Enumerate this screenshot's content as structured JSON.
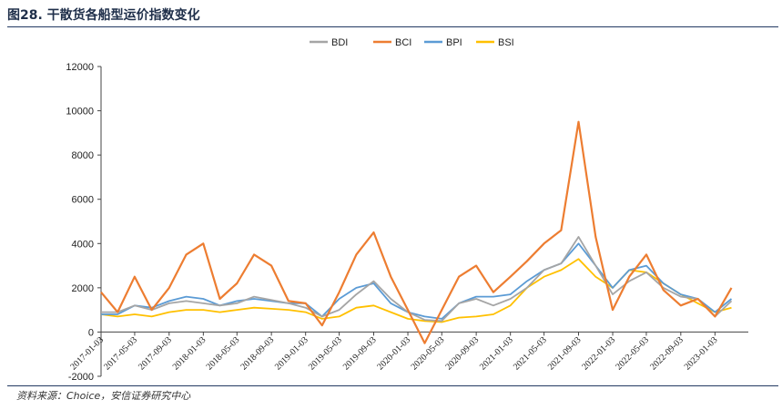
{
  "figure": {
    "title": "图28. 干散货各船型运价指数变化",
    "source": "资料来源：Choice，安信证券研究中心"
  },
  "colors": {
    "BDI": "#a5a5a5",
    "BCI": "#ed7d31",
    "BPI": "#5b9bd5",
    "BSI": "#ffc000"
  },
  "chart_data": {
    "type": "line",
    "ylim": [
      -2000,
      12000
    ],
    "yticks": [
      -2000,
      0,
      2000,
      4000,
      6000,
      8000,
      10000,
      12000
    ],
    "legend_position": "top-center",
    "grid": false,
    "x": [
      "2017-01-03",
      "2017-03-03",
      "2017-05-03",
      "2017-07-03",
      "2017-09-03",
      "2017-11-03",
      "2018-01-03",
      "2018-03-03",
      "2018-05-03",
      "2018-07-03",
      "2018-09-03",
      "2018-11-03",
      "2019-01-03",
      "2019-03-03",
      "2019-05-03",
      "2019-07-03",
      "2019-09-03",
      "2019-11-03",
      "2020-01-03",
      "2020-03-03",
      "2020-05-03",
      "2020-07-03",
      "2020-09-03",
      "2020-11-03",
      "2021-01-03",
      "2021-03-03",
      "2021-05-03",
      "2021-07-03",
      "2021-09-03",
      "2021-11-03",
      "2022-01-03",
      "2022-03-03",
      "2022-05-03",
      "2022-07-03",
      "2022-09-03",
      "2022-11-03",
      "2023-01-03",
      "2023-03-03"
    ],
    "xtick_labels": [
      "2017-01-03",
      "2017-05-03",
      "2017-09-03",
      "2018-01-03",
      "2018-05-03",
      "2018-09-03",
      "2019-01-03",
      "2019-05-03",
      "2019-09-03",
      "2020-01-03",
      "2020-05-03",
      "2020-09-03",
      "2021-01-03",
      "2021-05-03",
      "2021-09-03",
      "2022-01-03",
      "2022-05-03",
      "2022-09-03",
      "2023-01-03"
    ],
    "series": [
      {
        "name": "BDI",
        "values": [
          900,
          900,
          1200,
          1000,
          1300,
          1400,
          1300,
          1200,
          1300,
          1600,
          1450,
          1300,
          1100,
          700,
          1000,
          1700,
          2300,
          1500,
          900,
          550,
          500,
          1300,
          1500,
          1200,
          1500,
          2000,
          2800,
          3100,
          4300,
          3000,
          1700,
          2300,
          2700,
          2000,
          1600,
          1500,
          700,
          1400
        ]
      },
      {
        "name": "BCI",
        "values": [
          1800,
          900,
          2500,
          1000,
          2000,
          3500,
          4000,
          1500,
          2200,
          3500,
          3000,
          1400,
          1300,
          300,
          1800,
          3500,
          4500,
          2500,
          1000,
          -500,
          1000,
          2500,
          3000,
          1800,
          2500,
          3200,
          4000,
          4600,
          9500,
          4300,
          1000,
          2500,
          3500,
          1900,
          1200,
          1500,
          700,
          2000
        ]
      },
      {
        "name": "BPI",
        "values": [
          800,
          800,
          1200,
          1100,
          1400,
          1600,
          1500,
          1200,
          1400,
          1500,
          1400,
          1300,
          1300,
          700,
          1500,
          2000,
          2200,
          1300,
          900,
          700,
          600,
          1300,
          1600,
          1600,
          1700,
          2300,
          2800,
          3100,
          4000,
          3000,
          2000,
          2800,
          3000,
          2200,
          1700,
          1500,
          900,
          1500
        ]
      },
      {
        "name": "BSI",
        "values": [
          800,
          700,
          800,
          700,
          900,
          1000,
          1000,
          900,
          1000,
          1100,
          1050,
          1000,
          900,
          600,
          700,
          1100,
          1200,
          900,
          600,
          500,
          450,
          650,
          700,
          800,
          1200,
          2000,
          2500,
          2800,
          3300,
          2500,
          2000,
          2800,
          2700,
          2200,
          1700,
          1300,
          900,
          1100
        ]
      }
    ]
  }
}
